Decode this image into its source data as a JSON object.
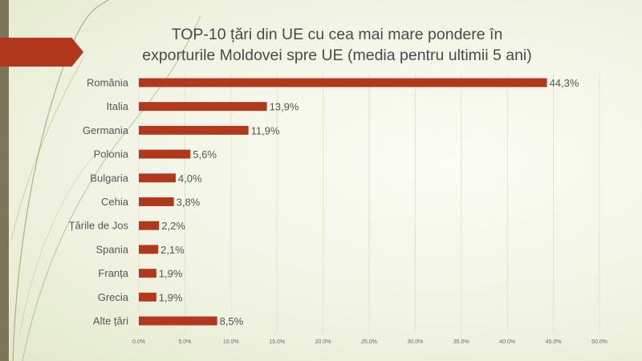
{
  "chart_data": {
    "type": "bar",
    "orientation": "horizontal",
    "title_lines": [
      "TOP-10 țări din UE cu cea mai mare pondere în",
      "exporturile Moldovei spre UE (media pentru ultimii 5 ani)"
    ],
    "categories": [
      "România",
      "Italia",
      "Germania",
      "Polonia",
      "Bulgaria",
      "Cehia",
      "Țările de Jos",
      "Spania",
      "Franța",
      "Grecia",
      "Alte țări"
    ],
    "values": [
      44.3,
      13.9,
      11.9,
      5.6,
      4.0,
      3.8,
      2.2,
      2.1,
      1.9,
      1.9,
      8.5
    ],
    "value_labels": [
      "44,3%",
      "13,9%",
      "11,9%",
      "5,6%",
      "4,0%",
      "3,8%",
      "2,2%",
      "2,1%",
      "1,9%",
      "1,9%",
      "8,5%"
    ],
    "xlim": [
      0,
      50
    ],
    "xticks": [
      0,
      5,
      10,
      15,
      20,
      25,
      30,
      35,
      40,
      45,
      50
    ],
    "xtick_labels": [
      "0.0%",
      "5.0%",
      "10.0%",
      "15.0%",
      "20.0%",
      "25.0%",
      "30.0%",
      "35.0%",
      "40.0%",
      "45.0%",
      "50.0%"
    ],
    "grid": "vertical",
    "legend": "none",
    "bar_color": "#b2371c",
    "grid_color": "#dfe4ce"
  },
  "theme": {
    "accent": "#b2371c",
    "strip": "#7d7558"
  }
}
